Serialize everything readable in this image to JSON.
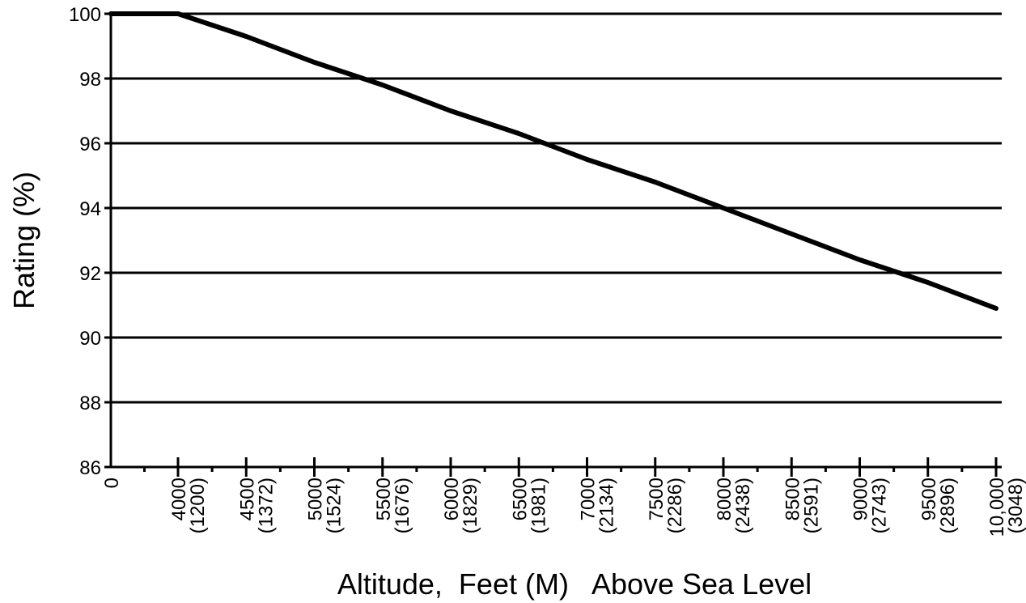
{
  "chart_data": {
    "type": "line",
    "title": "",
    "xlabel": "Altitude,  Feet (M)   Above Sea Level",
    "ylabel": "Rating (%)",
    "ylim": [
      86,
      100
    ],
    "yticks": [
      "86",
      "88",
      "90",
      "92",
      "94",
      "96",
      "98",
      "100"
    ],
    "grid": true,
    "x_categories": [
      {
        "feet": "0",
        "meters": ""
      },
      {
        "feet": "4000",
        "meters": "(1200)"
      },
      {
        "feet": "4500",
        "meters": "(1372)"
      },
      {
        "feet": "5000",
        "meters": "(1524)"
      },
      {
        "feet": "5500",
        "meters": "(1676)"
      },
      {
        "feet": "6000",
        "meters": "(1829)"
      },
      {
        "feet": "6500",
        "meters": "(1981)"
      },
      {
        "feet": "7000",
        "meters": "(2134)"
      },
      {
        "feet": "7500",
        "meters": "(2286)"
      },
      {
        "feet": "8000",
        "meters": "(2438)"
      },
      {
        "feet": "8500",
        "meters": "(2591)"
      },
      {
        "feet": "9000",
        "meters": "(2743)"
      },
      {
        "feet": "9500",
        "meters": "(2896)"
      },
      {
        "feet": "10,000",
        "meters": "(3048)"
      }
    ],
    "series": [
      {
        "values": [
          100,
          100,
          99.3,
          98.5,
          97.8,
          97.0,
          96.3,
          95.5,
          94.8,
          94.0,
          93.2,
          92.4,
          91.7,
          90.9
        ],
        "color": "#000000"
      }
    ]
  }
}
